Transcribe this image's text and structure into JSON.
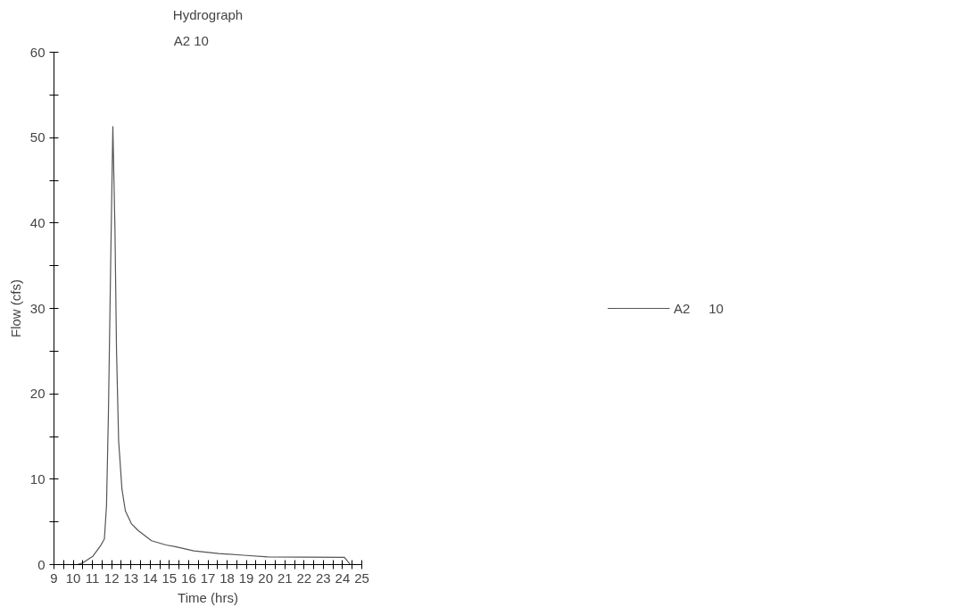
{
  "chart_data": {
    "type": "line",
    "title": "Hydrograph",
    "subtitle": "A2          10",
    "xlabel": "Time (hrs)",
    "ylabel": "Flow (cfs)",
    "x": [
      10.2,
      10.5,
      11.03,
      11.42,
      11.62,
      11.73,
      11.83,
      11.94,
      12.06,
      12.17,
      12.25,
      12.36,
      12.53,
      12.71,
      13.02,
      13.37,
      13.72,
      14.07,
      14.82,
      15.3,
      16.27,
      17.57,
      18.85,
      20.1,
      24.1,
      24.4
    ],
    "series": [
      {
        "name": "A2     10",
        "color": "#555555",
        "values": [
          0,
          0.2,
          1.0,
          2.2,
          3.0,
          6.9,
          17.8,
          34.3,
          51.3,
          39.2,
          25.1,
          14.5,
          8.9,
          6.3,
          4.8,
          4.0,
          3.4,
          2.8,
          2.3,
          2.1,
          1.6,
          1.3,
          1.1,
          0.9,
          0.85,
          0
        ]
      }
    ],
    "xlim": [
      9,
      25
    ],
    "ylim": [
      0,
      60
    ],
    "xticks": [
      9,
      {
        "value": 9.5,
        "label": null
      },
      10,
      {
        "value": 10.5,
        "label": null
      },
      11,
      {
        "value": 11.5,
        "label": null
      },
      12,
      {
        "value": 12.5,
        "label": null
      },
      13,
      {
        "value": 13.5,
        "label": null
      },
      14,
      {
        "value": 14.5,
        "label": null
      },
      15,
      {
        "value": 15.5,
        "label": null
      },
      16,
      {
        "value": 16.5,
        "label": null
      },
      17,
      {
        "value": 17.5,
        "label": null
      },
      18,
      {
        "value": 18.5,
        "label": null
      },
      19,
      {
        "value": 19.5,
        "label": null
      },
      20,
      {
        "value": 20.5,
        "label": null
      },
      21,
      {
        "value": 21.5,
        "label": null
      },
      22,
      {
        "value": 22.5,
        "label": null
      },
      23,
      {
        "value": 23.5,
        "label": null
      },
      24,
      {
        "value": 24.5,
        "label": null
      },
      25
    ],
    "yticks": [
      0,
      {
        "value": 5,
        "label": null
      },
      10,
      {
        "value": 15,
        "label": null
      },
      20,
      {
        "value": 25,
        "label": null
      },
      30,
      {
        "value": 35,
        "label": null
      },
      40,
      {
        "value": 45,
        "label": null
      },
      50,
      {
        "value": 55,
        "label": null
      },
      60
    ],
    "grid": false,
    "legend": "right",
    "marker": "none",
    "line_style": "solid"
  }
}
